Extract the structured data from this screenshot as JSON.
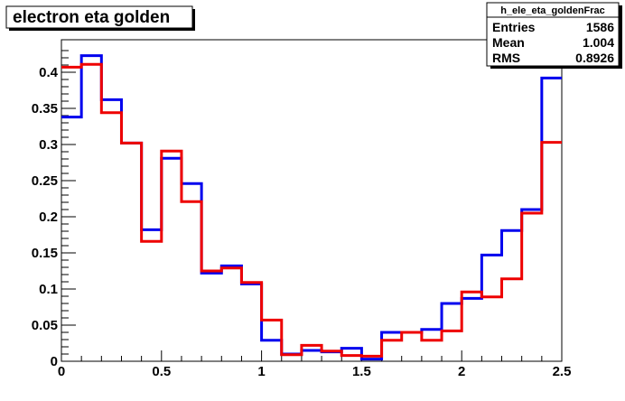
{
  "chart_data": {
    "type": "step-histogram",
    "title": "electron eta golden",
    "xlabel": "",
    "ylabel": "",
    "xlim": [
      0,
      2.5
    ],
    "ylim": [
      0,
      0.445
    ],
    "x_ticks": [
      0,
      0.5,
      1,
      1.5,
      2,
      2.5
    ],
    "x_tick_labels": [
      "0",
      "0.5",
      "1",
      "1.5",
      "2",
      "2.5"
    ],
    "y_ticks": [
      0,
      0.05,
      0.1,
      0.15,
      0.2,
      0.25,
      0.3,
      0.35,
      0.4
    ],
    "y_tick_labels": [
      "0",
      "0.05",
      "0.1",
      "0.15",
      "0.2",
      "0.25",
      "0.3",
      "0.35",
      "0.4"
    ],
    "bin_edges": [
      0,
      0.1,
      0.2,
      0.3,
      0.4,
      0.5,
      0.6,
      0.7,
      0.8,
      0.9,
      1.0,
      1.1,
      1.2,
      1.3,
      1.4,
      1.5,
      1.6,
      1.7,
      1.8,
      1.9,
      2.0,
      2.1,
      2.2,
      2.3,
      2.4,
      2.5
    ],
    "series": [
      {
        "color": "#0000ee",
        "values": [
          0.338,
          0.423,
          0.362,
          0.302,
          0.182,
          0.281,
          0.246,
          0.122,
          0.132,
          0.107,
          0.029,
          0.01,
          0.015,
          0.013,
          0.018,
          0.003,
          0.04,
          0.04,
          0.044,
          0.08,
          0.087,
          0.147,
          0.181,
          0.21,
          0.392
        ]
      },
      {
        "color": "#ee0000",
        "values": [
          0.407,
          0.411,
          0.344,
          0.302,
          0.166,
          0.291,
          0.221,
          0.125,
          0.129,
          0.109,
          0.057,
          0.009,
          0.022,
          0.014,
          0.008,
          0.007,
          0.029,
          0.04,
          0.029,
          0.042,
          0.096,
          0.089,
          0.114,
          0.205,
          0.303
        ]
      }
    ],
    "grid": false,
    "legend": "none"
  },
  "stats_box": {
    "name": "h_ele_eta_goldenFrac",
    "rows": [
      {
        "label": "Entries",
        "value": "1586"
      },
      {
        "label": "Mean",
        "value": "1.004"
      },
      {
        "label": "RMS",
        "value": "0.8926"
      }
    ]
  }
}
